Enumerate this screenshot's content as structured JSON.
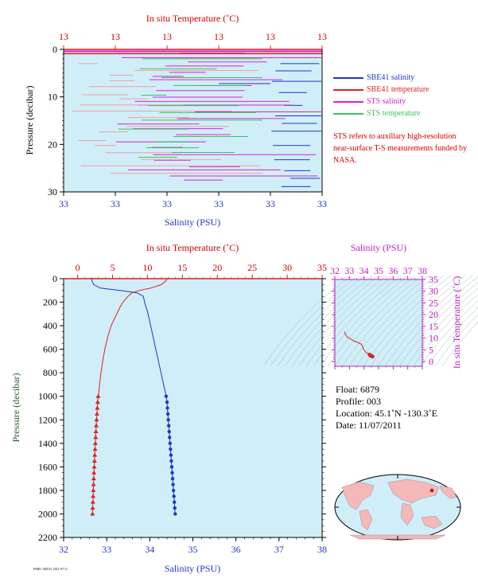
{
  "chart_data": [
    {
      "type": "line",
      "panel": "top",
      "title": "In situ Temperature (˚C)",
      "xlabel": "Salinity (PSU)",
      "ylabel": "Pressure (decibar)",
      "top_ticks": [
        "13",
        "13",
        "13",
        "13",
        "13",
        "13"
      ],
      "bottom_ticks": [
        "33",
        "33",
        "33",
        "33",
        "33",
        "33"
      ],
      "y_ticks": [
        "0",
        "10",
        "20",
        "30"
      ],
      "ylim": [
        0,
        30
      ],
      "series": [
        {
          "name": "SBE41 salinity",
          "color": "#1f36c8"
        },
        {
          "name": "SBE41 temperature",
          "color": "#e02020"
        },
        {
          "name": "STS salinity",
          "color": "#e020d0"
        },
        {
          "name": "STS temperature",
          "color": "#40c060"
        }
      ],
      "note": "STS refers to auxiliary high-resolution near-surface T-S measurements funded by NASA."
    },
    {
      "type": "line",
      "panel": "bottom",
      "top_title": "In situ Temperature (˚C)",
      "xlabel": "Salinity (PSU)",
      "ylabel": "Pressure (decibar)",
      "temp_ticks": [
        "0",
        "5",
        "10",
        "15",
        "20",
        "25",
        "30",
        "35"
      ],
      "sal_ticks": [
        "32",
        "33",
        "34",
        "35",
        "36",
        "37",
        "38"
      ],
      "p_ticks": [
        "0",
        "200",
        "400",
        "600",
        "800",
        "1000",
        "1200",
        "1400",
        "1600",
        "1800",
        "2000",
        "2200"
      ],
      "temp_lim": [
        -2,
        35
      ],
      "sal_lim": [
        32,
        38
      ],
      "p_lim": [
        0,
        2200
      ],
      "temperature": {
        "pressure": [
          0,
          5,
          20,
          50,
          80,
          100,
          120,
          150,
          200,
          250,
          300,
          350,
          400,
          500,
          600,
          700,
          800,
          900,
          1000,
          1050,
          1100,
          1150,
          1200,
          1250,
          1300,
          1350,
          1400,
          1450,
          1500,
          1550,
          1600,
          1650,
          1700,
          1750,
          1800,
          1850,
          1900,
          1950,
          2000
        ],
        "values": [
          12.8,
          12.8,
          12.6,
          12.0,
          10.5,
          8.8,
          7.8,
          7.2,
          6.5,
          6.0,
          5.6,
          5.2,
          4.8,
          4.3,
          3.9,
          3.6,
          3.35,
          3.15,
          2.95,
          2.88,
          2.82,
          2.77,
          2.72,
          2.67,
          2.62,
          2.58,
          2.54,
          2.5,
          2.46,
          2.42,
          2.38,
          2.34,
          2.31,
          2.28,
          2.25,
          2.22,
          2.19,
          2.16,
          2.13
        ]
      },
      "salinity": {
        "pressure": [
          0,
          20,
          50,
          80,
          100,
          120,
          150,
          200,
          250,
          300,
          400,
          500,
          600,
          700,
          800,
          900,
          1000,
          1050,
          1100,
          1150,
          1200,
          1250,
          1300,
          1350,
          1400,
          1450,
          1500,
          1550,
          1600,
          1650,
          1700,
          1750,
          1800,
          1850,
          1900,
          1950,
          2000
        ],
        "values": [
          32.65,
          32.66,
          32.7,
          32.85,
          33.3,
          33.7,
          33.85,
          33.88,
          33.92,
          33.96,
          34.02,
          34.08,
          34.14,
          34.2,
          34.26,
          34.32,
          34.38,
          34.4,
          34.41,
          34.42,
          34.43,
          34.44,
          34.45,
          34.46,
          34.47,
          34.48,
          34.49,
          34.5,
          34.51,
          34.52,
          34.53,
          34.54,
          34.55,
          34.56,
          34.57,
          34.58,
          34.59
        ]
      }
    },
    {
      "type": "scatter",
      "panel": "ts-diagram",
      "top_title": "Salinity (PSU)",
      "ylabel": "In situ Temperature (˚C)",
      "sal_ticks": [
        "32",
        "33",
        "34",
        "35",
        "36",
        "37",
        "38"
      ],
      "temp_ticks": [
        "0",
        "5",
        "10",
        "15",
        "20",
        "25",
        "30",
        "35"
      ],
      "sal_lim": [
        32,
        38
      ],
      "temp_lim": [
        -2,
        35
      ],
      "points": {
        "salinity": [
          32.65,
          32.7,
          32.85,
          33.3,
          33.7,
          33.85,
          33.92,
          34.02,
          34.14,
          34.26,
          34.38,
          34.45,
          34.52,
          34.59
        ],
        "temperature": [
          12.8,
          12.0,
          10.5,
          8.8,
          7.8,
          7.2,
          6.0,
          4.8,
          3.9,
          3.35,
          2.95,
          2.62,
          2.34,
          2.13
        ]
      }
    }
  ],
  "info": {
    "float": "Float:  6879",
    "profile": "Profile:  003",
    "location": "Location:  45.1˚N  -130.3˚E",
    "date": "Date:  11/07/2011"
  },
  "footer_small": "PMEL ARGO, 2011-07-11"
}
